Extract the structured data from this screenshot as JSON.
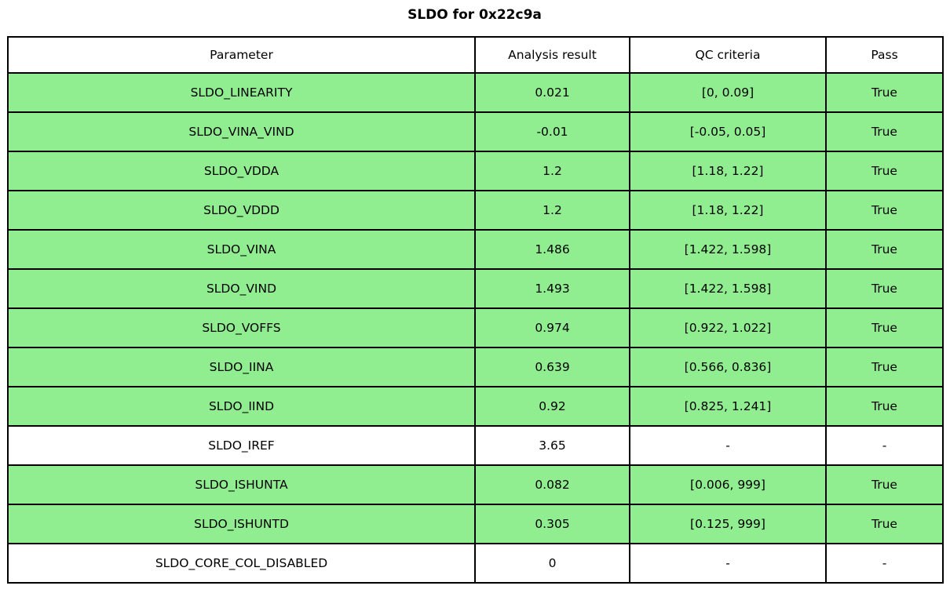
{
  "chart_data": {
    "type": "table",
    "title": "SLDO for 0x22c9a",
    "columns": [
      "Parameter",
      "Analysis result",
      "QC criteria",
      "Pass"
    ],
    "rows": [
      {
        "parameter": "SLDO_LINEARITY",
        "analysis_result": "0.021",
        "qc_criteria": "[0, 0.09]",
        "pass": "True",
        "highlighted": true
      },
      {
        "parameter": "SLDO_VINA_VIND",
        "analysis_result": "-0.01",
        "qc_criteria": "[-0.05, 0.05]",
        "pass": "True",
        "highlighted": true
      },
      {
        "parameter": "SLDO_VDDA",
        "analysis_result": "1.2",
        "qc_criteria": "[1.18, 1.22]",
        "pass": "True",
        "highlighted": true
      },
      {
        "parameter": "SLDO_VDDD",
        "analysis_result": "1.2",
        "qc_criteria": "[1.18, 1.22]",
        "pass": "True",
        "highlighted": true
      },
      {
        "parameter": "SLDO_VINA",
        "analysis_result": "1.486",
        "qc_criteria": "[1.422, 1.598]",
        "pass": "True",
        "highlighted": true
      },
      {
        "parameter": "SLDO_VIND",
        "analysis_result": "1.493",
        "qc_criteria": "[1.422, 1.598]",
        "pass": "True",
        "highlighted": true
      },
      {
        "parameter": "SLDO_VOFFS",
        "analysis_result": "0.974",
        "qc_criteria": "[0.922, 1.022]",
        "pass": "True",
        "highlighted": true
      },
      {
        "parameter": "SLDO_IINA",
        "analysis_result": "0.639",
        "qc_criteria": "[0.566, 0.836]",
        "pass": "True",
        "highlighted": true
      },
      {
        "parameter": "SLDO_IIND",
        "analysis_result": "0.92",
        "qc_criteria": "[0.825, 1.241]",
        "pass": "True",
        "highlighted": true
      },
      {
        "parameter": "SLDO_IREF",
        "analysis_result": "3.65",
        "qc_criteria": "-",
        "pass": "-",
        "highlighted": false
      },
      {
        "parameter": "SLDO_ISHUNTA",
        "analysis_result": "0.082",
        "qc_criteria": "[0.006, 999]",
        "pass": "True",
        "highlighted": true
      },
      {
        "parameter": "SLDO_ISHUNTD",
        "analysis_result": "0.305",
        "qc_criteria": "[0.125, 999]",
        "pass": "True",
        "highlighted": true
      },
      {
        "parameter": "SLDO_CORE_COL_DISABLED",
        "analysis_result": "0",
        "qc_criteria": "-",
        "pass": "-",
        "highlighted": false
      }
    ],
    "layout": {
      "legend": "none",
      "grid": "full-cell-borders",
      "header_bg": "#ffffff",
      "pass_row_bg": "#90EE90",
      "neutral_row_bg": "#ffffff",
      "border_color": "#000000",
      "text_color": "#000000"
    }
  }
}
